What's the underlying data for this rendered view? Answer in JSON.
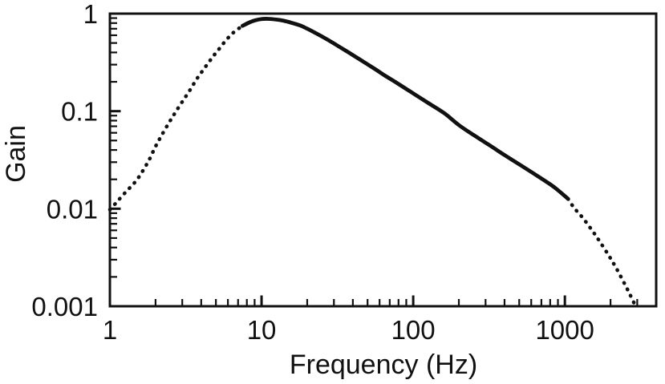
{
  "figure": {
    "background_color": "#ffffff",
    "ink_color": "#111111"
  },
  "chart_data": {
    "type": "line",
    "title": "",
    "grid": false,
    "legend": false,
    "line_color": "#111111",
    "x_axis": {
      "label": "Frequency (Hz)",
      "scale": "log",
      "range": [
        1,
        4000
      ],
      "ticks": [
        1,
        10,
        100,
        1000
      ],
      "tick_labels": [
        "1",
        "10",
        "100",
        "1000"
      ]
    },
    "y_axis": {
      "label": "Gain",
      "scale": "log",
      "range": [
        0.001,
        1
      ],
      "ticks": [
        1,
        0.1,
        0.01,
        0.001
      ],
      "tick_labels": [
        "1",
        "0.1",
        "0.01",
        "0.001"
      ]
    },
    "series": [
      {
        "name": "low_frequency_dotted",
        "style": "dotted",
        "points": [
          [
            1.0,
            0.0098
          ],
          [
            1.1,
            0.0115
          ],
          [
            1.22,
            0.0138
          ],
          [
            1.35,
            0.0163
          ],
          [
            1.5,
            0.0196
          ],
          [
            1.65,
            0.0245
          ],
          [
            1.82,
            0.032
          ],
          [
            2.0,
            0.0435
          ],
          [
            2.2,
            0.057
          ],
          [
            2.45,
            0.076
          ],
          [
            2.7,
            0.097
          ],
          [
            3.0,
            0.125
          ],
          [
            3.35,
            0.162
          ],
          [
            3.75,
            0.215
          ],
          [
            4.2,
            0.275
          ],
          [
            4.7,
            0.35
          ],
          [
            5.25,
            0.435
          ],
          [
            5.9,
            0.545
          ],
          [
            6.6,
            0.65
          ],
          [
            7.5,
            0.75
          ]
        ]
      },
      {
        "name": "mid_band_solid",
        "style": "solid",
        "points": [
          [
            7.5,
            0.75
          ],
          [
            8.2,
            0.805
          ],
          [
            9.0,
            0.85
          ],
          [
            10.0,
            0.88
          ],
          [
            11.0,
            0.885
          ],
          [
            12.5,
            0.87
          ],
          [
            14.0,
            0.845
          ],
          [
            16.0,
            0.8
          ],
          [
            18.0,
            0.755
          ],
          [
            20.0,
            0.7
          ],
          [
            23.0,
            0.625
          ],
          [
            27.0,
            0.545
          ],
          [
            32.0,
            0.465
          ],
          [
            38.0,
            0.395
          ],
          [
            45.0,
            0.335
          ],
          [
            55.0,
            0.275
          ],
          [
            65.0,
            0.232
          ],
          [
            80.0,
            0.19
          ],
          [
            100.0,
            0.152
          ],
          [
            125.0,
            0.122
          ],
          [
            160.0,
            0.0955
          ],
          [
            200.0,
            0.072
          ],
          [
            250.0,
            0.057
          ],
          [
            320.0,
            0.0445
          ],
          [
            400.0,
            0.0355
          ],
          [
            500.0,
            0.0285
          ],
          [
            650.0,
            0.022
          ],
          [
            800.0,
            0.0178
          ],
          [
            900.0,
            0.0155
          ],
          [
            1050.0,
            0.0126
          ]
        ]
      },
      {
        "name": "high_frequency_dotted",
        "style": "dotted",
        "points": [
          [
            1050.0,
            0.0126
          ],
          [
            1150.0,
            0.0102
          ],
          [
            1300.0,
            0.0082
          ],
          [
            1500.0,
            0.0061
          ],
          [
            1700.0,
            0.0046
          ],
          [
            1950.0,
            0.0033
          ],
          [
            2200.0,
            0.0024
          ],
          [
            2500.0,
            0.00165
          ],
          [
            2700.0,
            0.0013
          ],
          [
            2900.0,
            0.00103
          ]
        ]
      }
    ]
  }
}
